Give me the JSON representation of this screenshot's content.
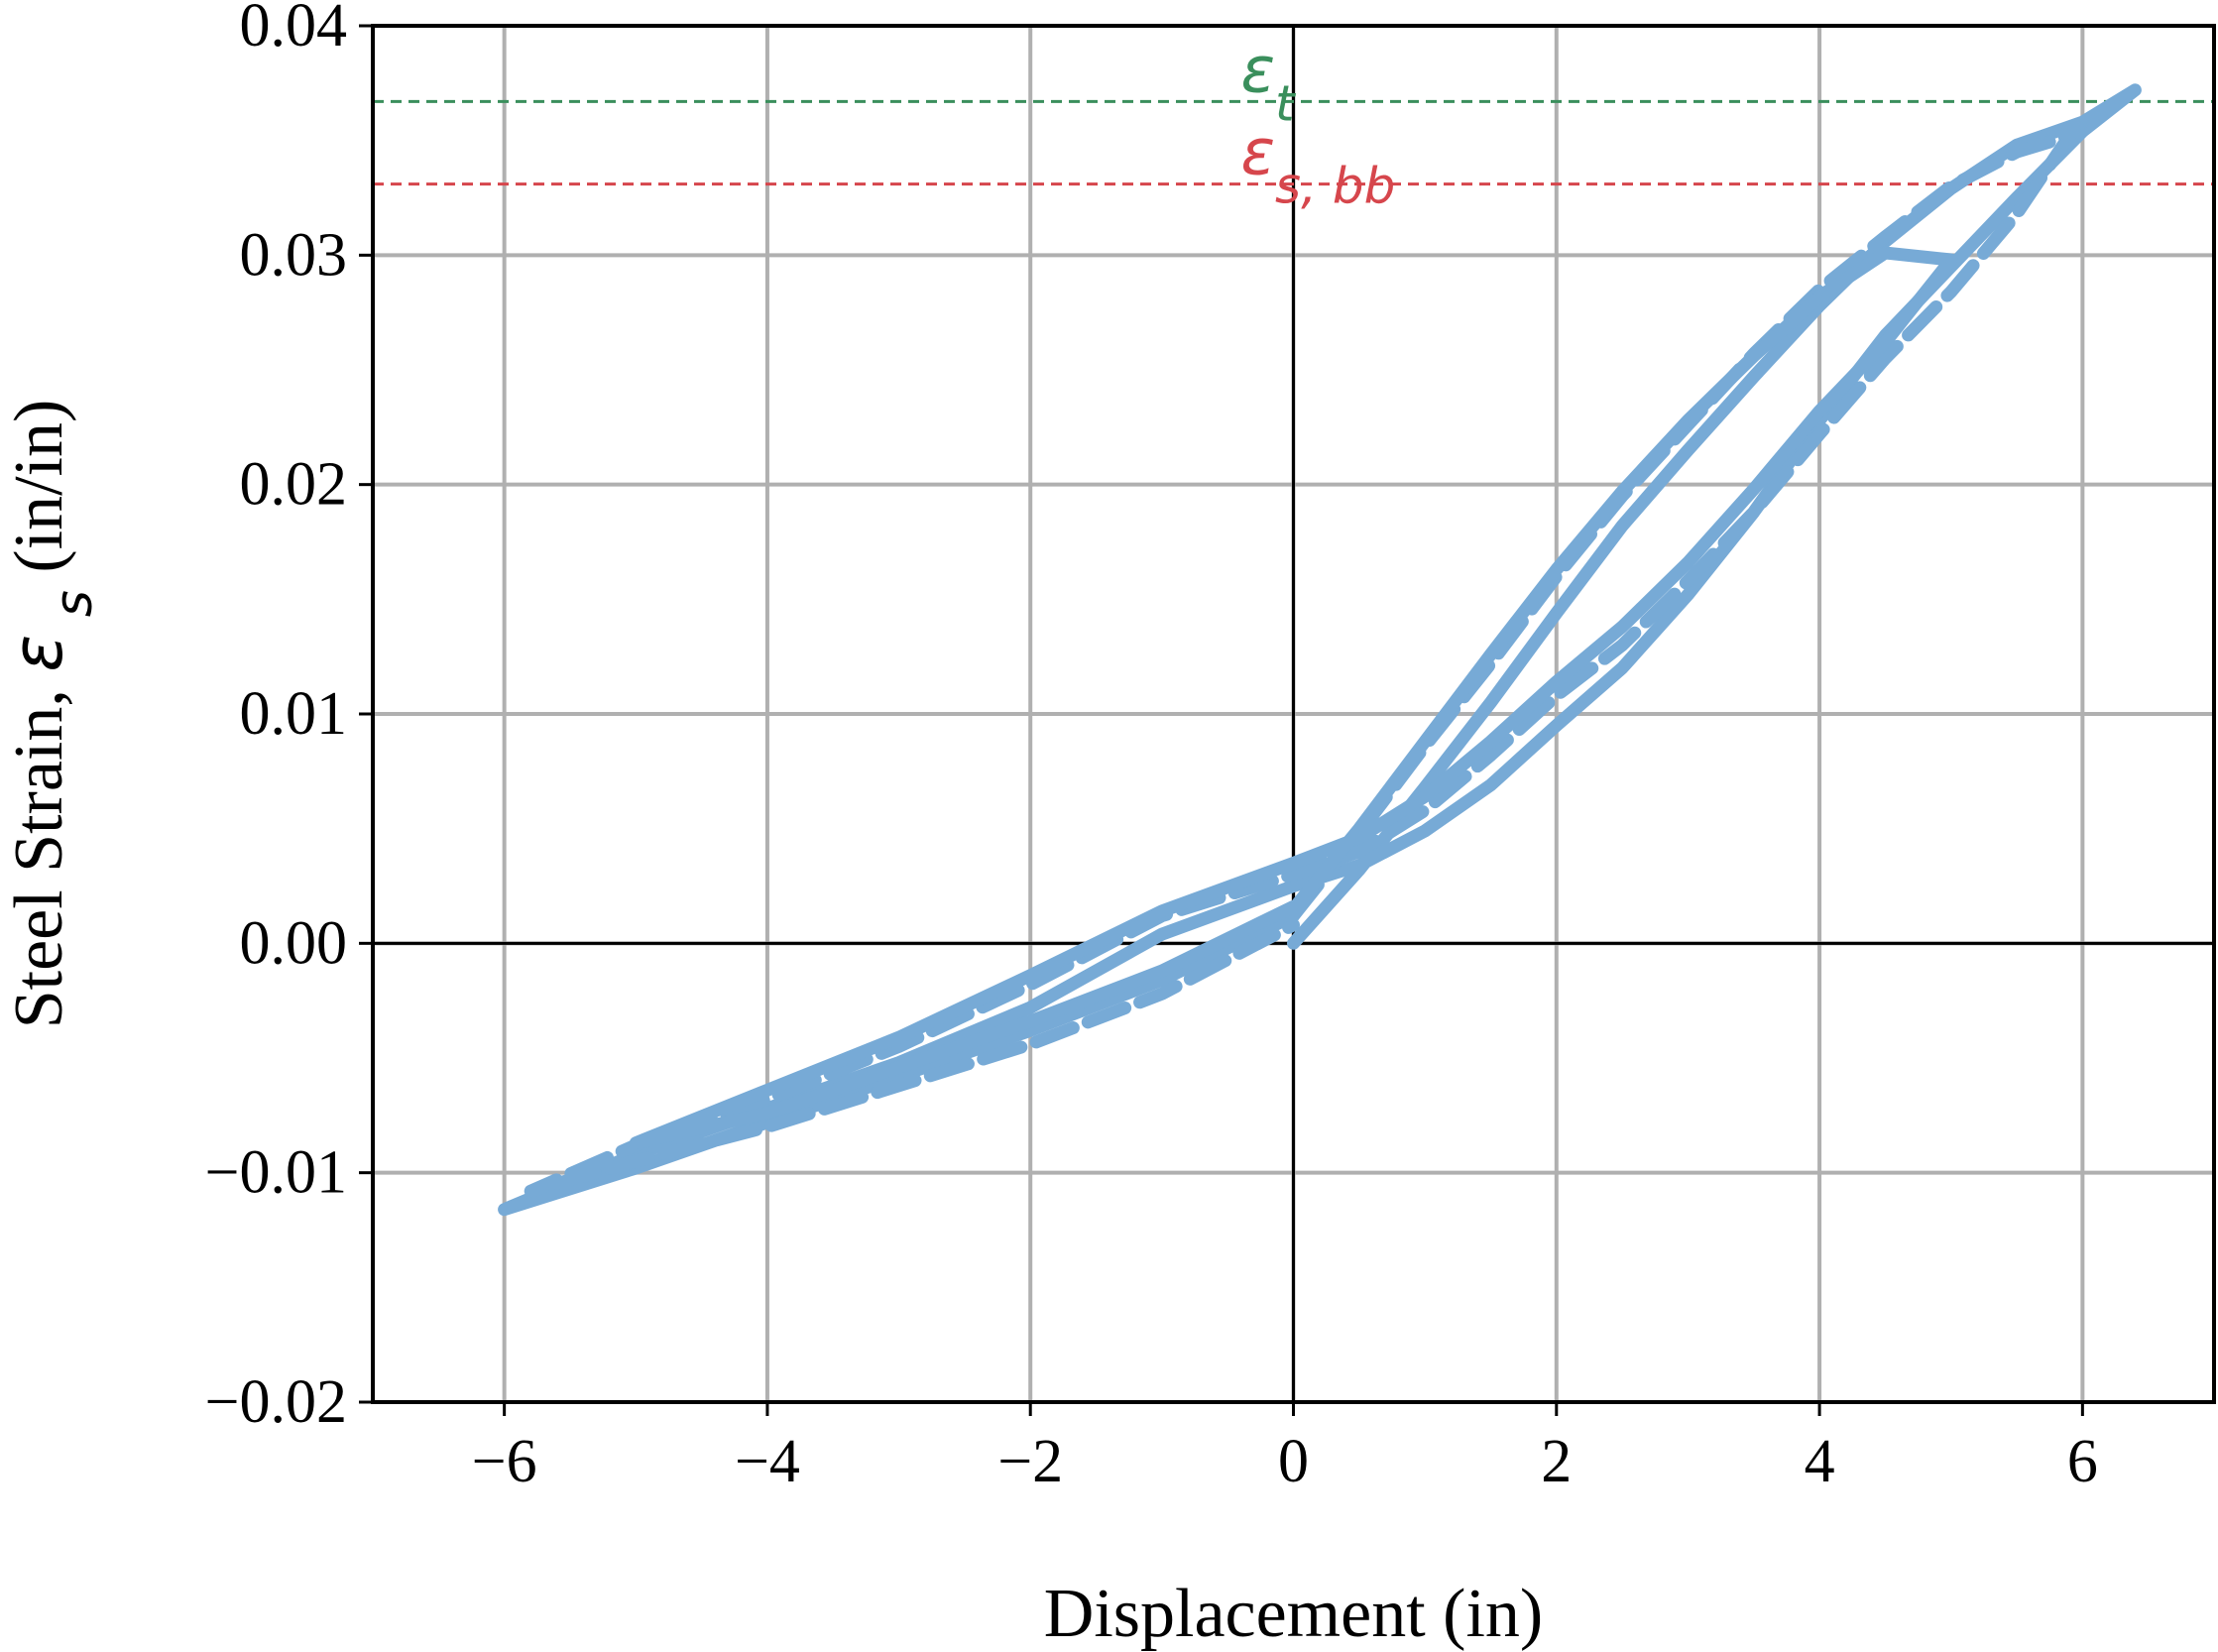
{
  "chart_data": {
    "type": "line",
    "xlabel": "Displacement (in)",
    "ylabel": {
      "prefix": "Steel Strain, ",
      "symbol": "ε",
      "subscript": "s",
      "suffix": " (in/in)"
    },
    "xlim": [
      -7,
      7
    ],
    "ylim": [
      -0.02,
      0.04
    ],
    "xticks": [
      -6,
      -4,
      -2,
      0,
      2,
      4,
      6
    ],
    "xtick_labels": [
      "−6",
      "−4",
      "−2",
      "0",
      "2",
      "4",
      "6"
    ],
    "yticks": [
      -0.02,
      -0.01,
      0.0,
      0.01,
      0.02,
      0.03,
      0.04
    ],
    "ytick_labels": [
      "−0.02",
      "−0.01",
      "0.00",
      "0.01",
      "0.02",
      "0.03",
      "0.04"
    ],
    "grid": true,
    "zero_lines": true,
    "reference_lines": [
      {
        "symbol": "ε",
        "subscript": "t",
        "y": 0.0367,
        "color": "#3a8f5c",
        "style": "dashed"
      },
      {
        "symbol": "ε",
        "subscript": "s, bb",
        "y": 0.0331,
        "color": "#d6464c",
        "style": "dashed"
      }
    ],
    "series": [
      {
        "color": "#77aad6",
        "style": "solid",
        "x": [
          0,
          0.5,
          1.0,
          1.5,
          2.0,
          2.5,
          3.0,
          3.5,
          4.0,
          4.5,
          5.0,
          5.5,
          6.0,
          6.4,
          6.0,
          5.5,
          5.0,
          4.5,
          4.0,
          3.5,
          3.0,
          2.5,
          2.0,
          1.5,
          1.0,
          0.5,
          0,
          -1.0,
          -2.0,
          -3.0,
          -4.0,
          -5.0,
          -6.0,
          -5.0,
          -4.0,
          -3.0,
          -2.0,
          -1.0,
          0
        ],
        "y": [
          0.0,
          0.0032,
          0.0068,
          0.0105,
          0.0144,
          0.0182,
          0.0215,
          0.0247,
          0.0278,
          0.0306,
          0.0329,
          0.0348,
          0.0358,
          0.0372,
          0.0354,
          0.0325,
          0.0295,
          0.0265,
          0.0228,
          0.0188,
          0.0152,
          0.012,
          0.0095,
          0.0069,
          0.0049,
          0.0034,
          0.0025,
          0.0004,
          -0.0028,
          -0.0052,
          -0.0072,
          -0.0092,
          -0.0116,
          -0.0098,
          -0.0078,
          -0.0058,
          -0.0038,
          -0.0016,
          0.0012
        ]
      },
      {
        "color": "#77aad6",
        "style": "dashed",
        "x": [
          0,
          0.5,
          1.0,
          1.5,
          2.0,
          2.5,
          3.0,
          3.5,
          4.0,
          4.5,
          5.0,
          5.5,
          5.9,
          5.5,
          5.0,
          4.5,
          4.0,
          3.5,
          3.0,
          2.5,
          2.0,
          1.5,
          1.0,
          0.5,
          0,
          -1.0,
          -2.0,
          -3.0,
          -4.0,
          -5.0,
          -5.8,
          -5.0,
          -4.0,
          -3.0,
          -2.0,
          -1.0,
          0
        ],
        "y": [
          0.0012,
          0.0048,
          0.0086,
          0.0122,
          0.016,
          0.0195,
          0.0226,
          0.0257,
          0.0285,
          0.0308,
          0.033,
          0.0345,
          0.0352,
          0.0318,
          0.0284,
          0.0255,
          0.0222,
          0.0188,
          0.0158,
          0.013,
          0.0108,
          0.0082,
          0.0058,
          0.004,
          0.003,
          0.0012,
          -0.0018,
          -0.0045,
          -0.0068,
          -0.0088,
          -0.0108,
          -0.0095,
          -0.008,
          -0.0062,
          -0.0044,
          -0.0022,
          0.0008
        ]
      },
      {
        "color": "#77aad6",
        "style": "solid",
        "x": [
          0,
          0.5,
          1.0,
          1.5,
          2.0,
          2.5,
          3.0,
          3.5,
          4.0,
          4.5,
          5.0,
          4.5,
          4.0,
          3.5,
          3.0,
          2.5,
          2.0,
          1.5,
          1.0,
          0.5,
          0,
          -1.0,
          -2.0,
          -3.0,
          -4.0,
          -5.0,
          -4.0,
          -3.0,
          -2.0,
          -1.0,
          0
        ],
        "y": [
          0.0015,
          0.005,
          0.0088,
          0.0126,
          0.0163,
          0.0197,
          0.0228,
          0.0256,
          0.0282,
          0.0301,
          0.0298,
          0.0262,
          0.0232,
          0.0198,
          0.0166,
          0.0138,
          0.0114,
          0.0088,
          0.0064,
          0.0046,
          0.0035,
          0.0014,
          -0.0014,
          -0.0041,
          -0.0064,
          -0.0087,
          -0.0074,
          -0.0054,
          -0.0034,
          -0.0012,
          0.0016
        ]
      }
    ]
  }
}
